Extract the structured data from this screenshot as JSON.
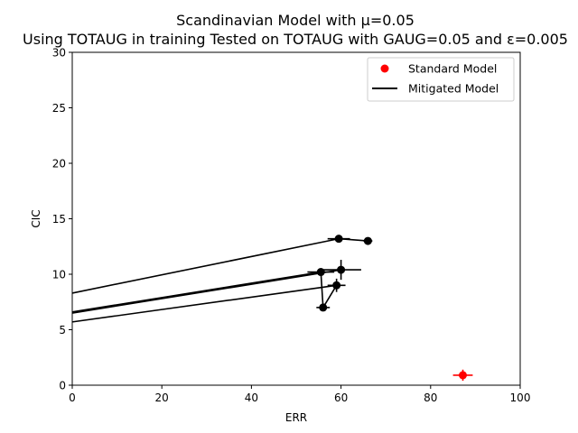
{
  "chart_data": {
    "type": "scatter",
    "title": "Scandinavian Model with μ=0.05",
    "subtitle": "Using TOTAUG in training Tested on TOTAUG with GAUG=0.05 and ε=0.005",
    "xlabel": "ERR",
    "ylabel": "CIC",
    "xlim": [
      0,
      100
    ],
    "ylim": [
      0,
      30
    ],
    "xticks": [
      0,
      20,
      40,
      60,
      80,
      100
    ],
    "yticks": [
      0,
      5,
      10,
      15,
      20,
      25,
      30
    ],
    "grid": false,
    "legend": {
      "placement": "top-right",
      "entries": [
        "Standard Model",
        "Mitigated Model"
      ]
    },
    "colors": {
      "standard": "#ff0000",
      "mitigated": "#000000"
    },
    "series": [
      {
        "name": "Standard Model",
        "kind": "points",
        "color": "#ff0000",
        "points": [
          {
            "x": 87.2,
            "y": 0.9,
            "xerr": 2.2,
            "yerr": 0.5
          }
        ]
      },
      {
        "name": "Mitigated Model",
        "kind": "points",
        "color": "#000000",
        "points": [
          {
            "x": 59.5,
            "y": 13.2,
            "xerr": 2.5,
            "yerr": 0.2
          },
          {
            "x": 66.0,
            "y": 13.0,
            "xerr": 1.0,
            "yerr": 0.2
          },
          {
            "x": 55.5,
            "y": 10.2,
            "xerr": 3.0,
            "yerr": 0.2
          },
          {
            "x": 60.0,
            "y": 10.4,
            "xerr": 4.5,
            "yerr": 0.9
          },
          {
            "x": 59.0,
            "y": 9.0,
            "xerr": 2.0,
            "yerr": 0.6
          },
          {
            "x": 56.0,
            "y": 7.0,
            "xerr": 1.5,
            "yerr": 0.2
          }
        ]
      }
    ],
    "lines": [
      {
        "color": "#000000",
        "points": [
          {
            "x": 0,
            "y": 8.3
          },
          {
            "x": 59.5,
            "y": 13.2
          },
          {
            "x": 66.0,
            "y": 13.0
          }
        ]
      },
      {
        "color": "#000000",
        "points": [
          {
            "x": 0,
            "y": 6.6
          },
          {
            "x": 55.5,
            "y": 10.2
          },
          {
            "x": 56.0,
            "y": 7.0
          }
        ]
      },
      {
        "color": "#000000",
        "points": [
          {
            "x": 0,
            "y": 6.5
          },
          {
            "x": 60.0,
            "y": 10.4
          }
        ]
      },
      {
        "color": "#000000",
        "points": [
          {
            "x": 0,
            "y": 5.7
          },
          {
            "x": 59.0,
            "y": 9.0
          },
          {
            "x": 56.0,
            "y": 7.0
          }
        ]
      }
    ]
  }
}
